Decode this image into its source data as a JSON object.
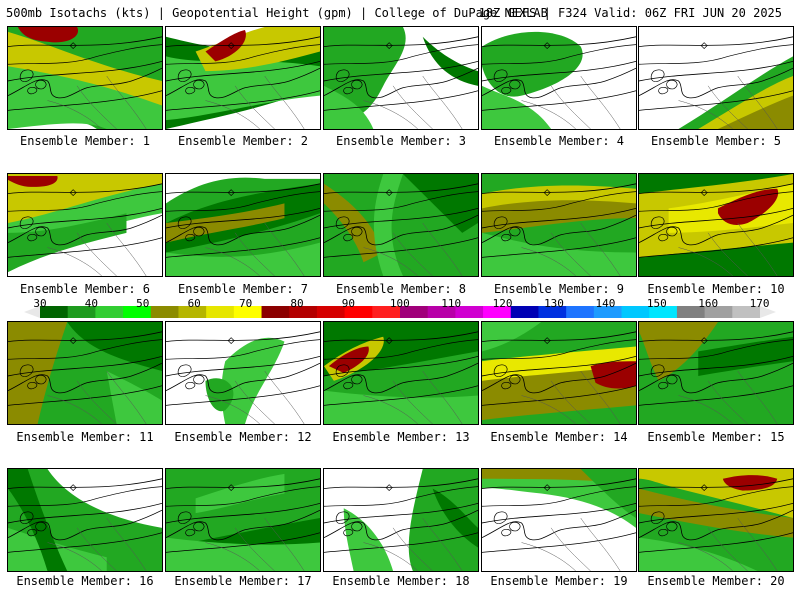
{
  "header": {
    "left": "500mb Isotachs (kts) | Geopotential Height (gpm) | College of DuPage NEXLAB",
    "right": "18Z GEFS | F324 Valid: 06Z FRI JUN 20 2025"
  },
  "colorbar": {
    "labels": [
      "30",
      "40",
      "50",
      "60",
      "70",
      "80",
      "90",
      "100",
      "110",
      "120",
      "130",
      "140",
      "150",
      "160",
      "170"
    ],
    "colors": [
      "#006400",
      "#1e9b1e",
      "#32cd32",
      "#00ff00",
      "#8b8b00",
      "#b5b500",
      "#e6e600",
      "#ffff00",
      "#8b0000",
      "#b30000",
      "#d50000",
      "#ff0000",
      "#ff2020",
      "#a0007a",
      "#b800a8",
      "#d000d0",
      "#ff00ff",
      "#0000b4",
      "#0030e0",
      "#1e74ff",
      "#1e9bff",
      "#00c8ff",
      "#00e6ff",
      "#808080",
      "#a0a0a0",
      "#c0c0c0"
    ]
  },
  "members": [
    {
      "caption": "Ensemble Member: 1"
    },
    {
      "caption": "Ensemble Member: 2"
    },
    {
      "caption": "Ensemble Member: 3"
    },
    {
      "caption": "Ensemble Member: 4"
    },
    {
      "caption": "Ensemble Member: 5"
    },
    {
      "caption": "Ensemble Member: 6"
    },
    {
      "caption": "Ensemble Member: 7"
    },
    {
      "caption": "Ensemble Member: 8"
    },
    {
      "caption": "Ensemble Member: 9"
    },
    {
      "caption": "Ensemble Member: 10"
    },
    {
      "caption": "Ensemble Member: 11"
    },
    {
      "caption": "Ensemble Member: 12"
    },
    {
      "caption": "Ensemble Member: 13"
    },
    {
      "caption": "Ensemble Member: 14"
    },
    {
      "caption": "Ensemble Member: 15"
    },
    {
      "caption": "Ensemble Member: 16"
    },
    {
      "caption": "Ensemble Member: 17"
    },
    {
      "caption": "Ensemble Member: 18"
    },
    {
      "caption": "Ensemble Member: 19"
    },
    {
      "caption": "Ensemble Member: 20"
    }
  ]
}
